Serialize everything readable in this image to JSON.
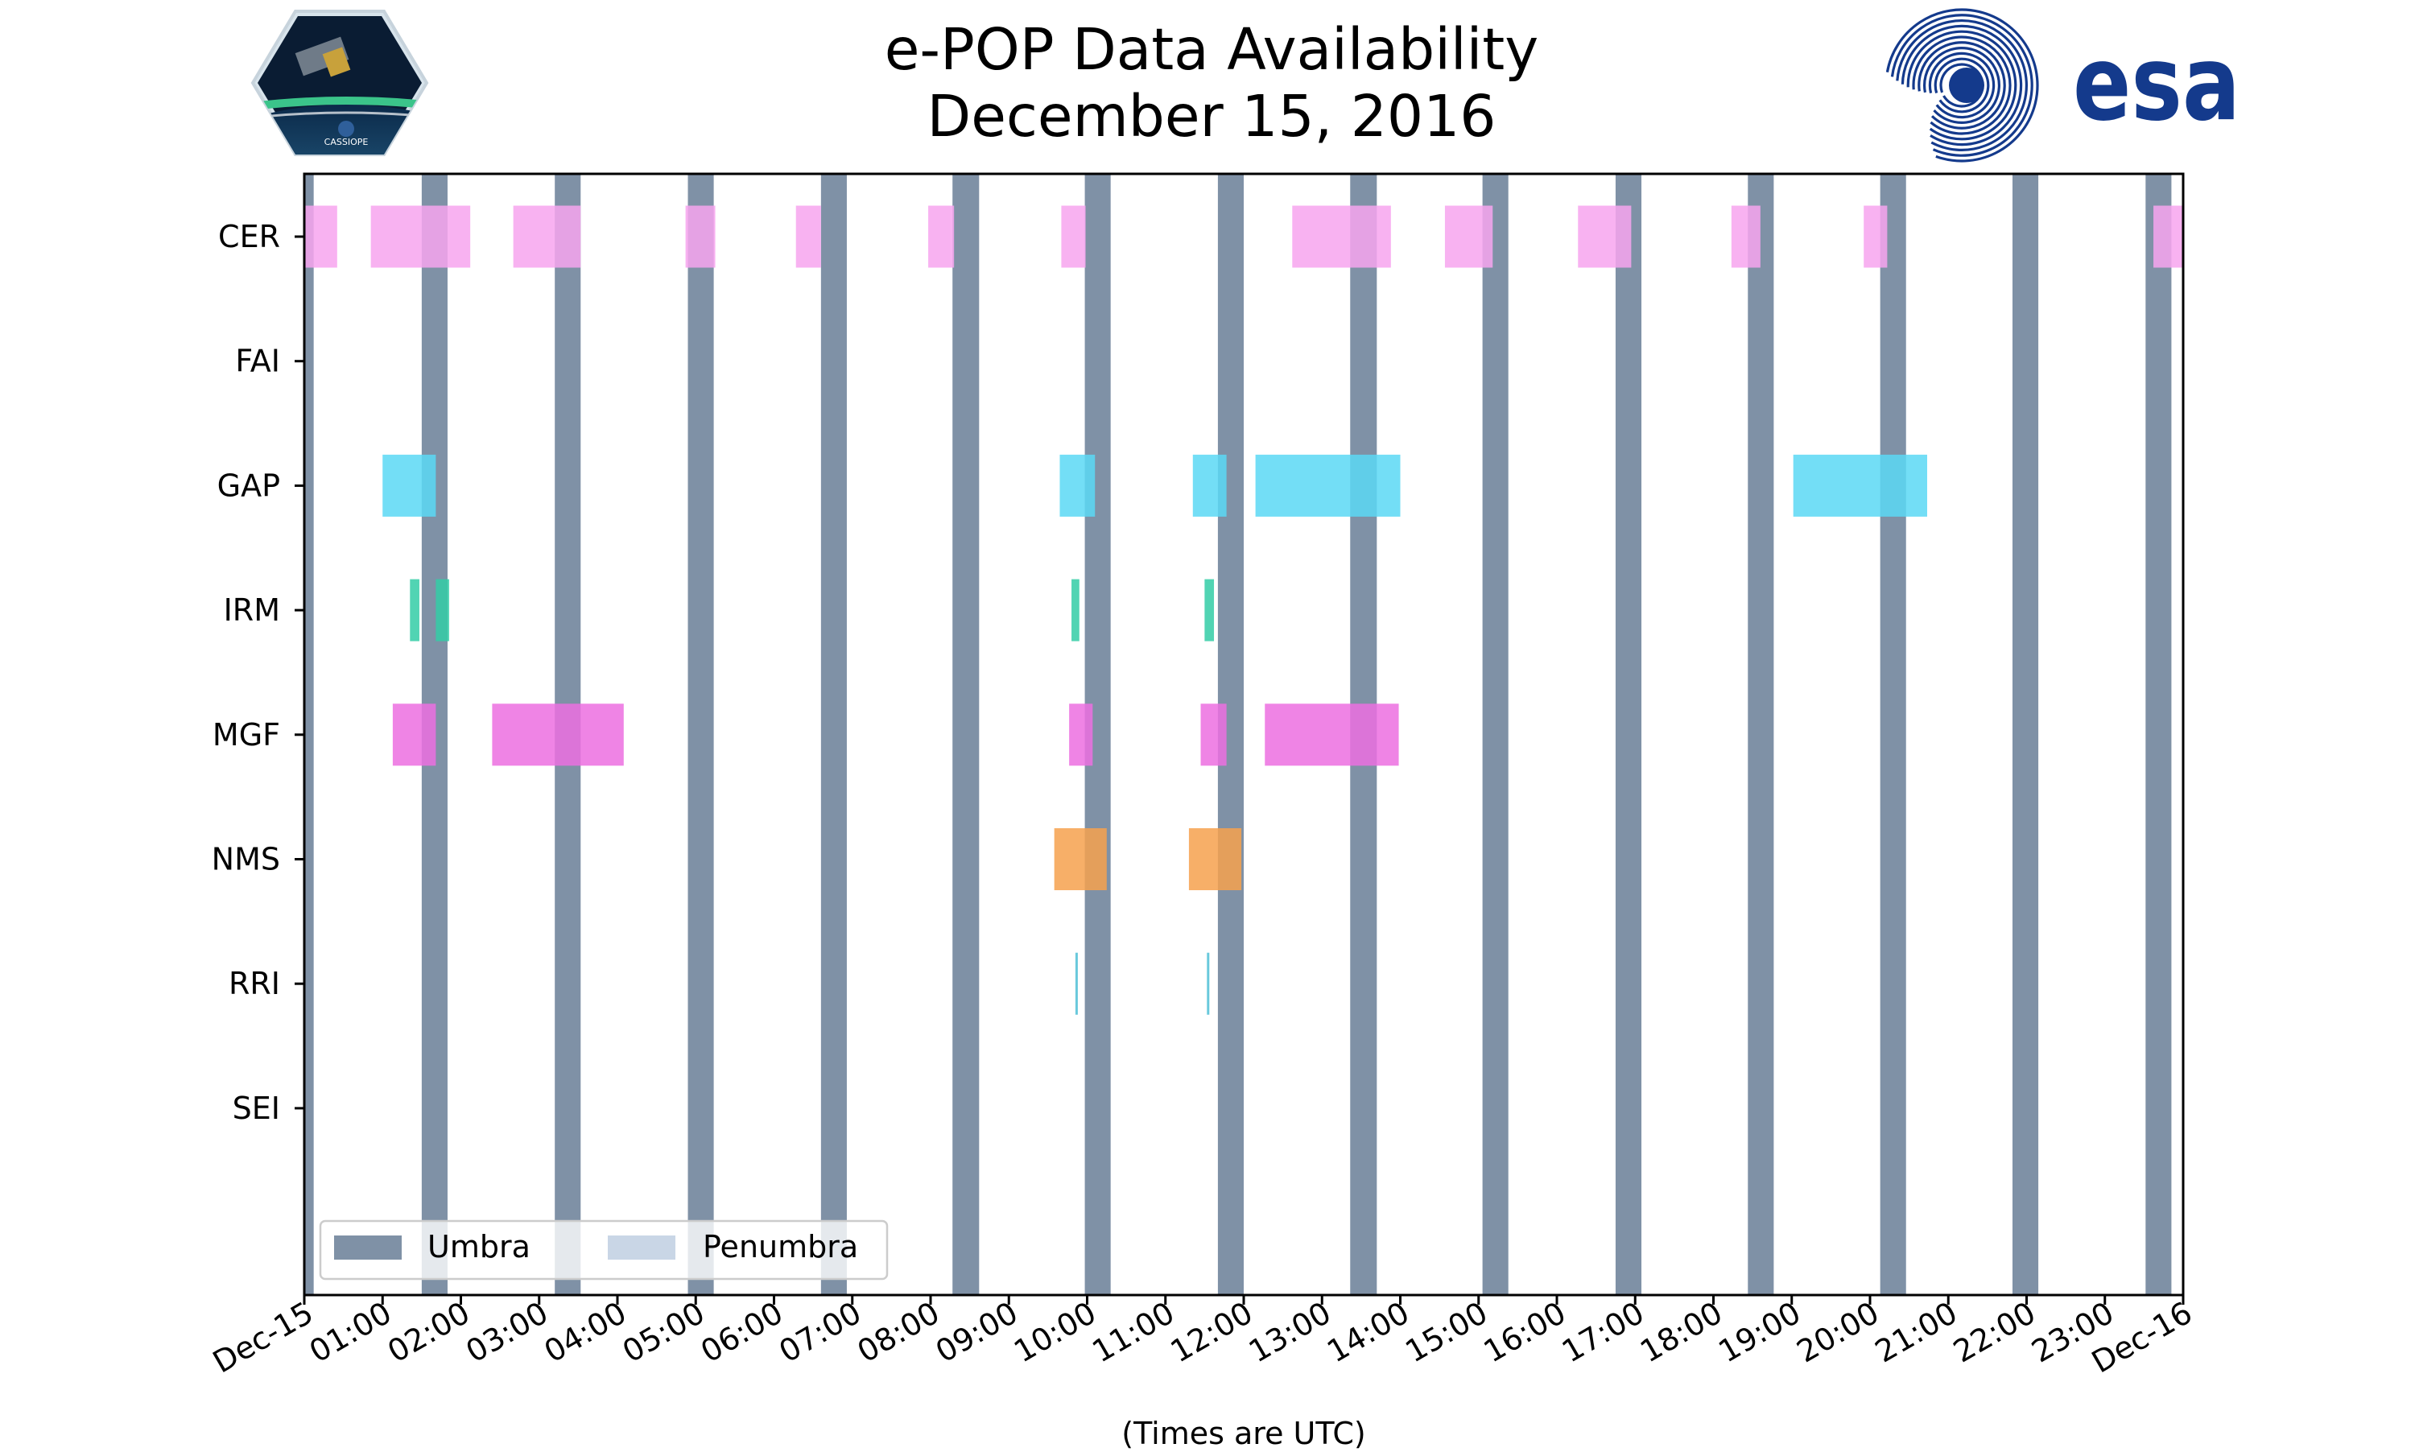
{
  "header": {
    "title_line1": "e-POP Data Availability",
    "title_line2": "December 15, 2016",
    "logo_left_text": "CASSIOPE",
    "logo_right_text": "esa"
  },
  "colors": {
    "umbra": "#7f91a6",
    "penumbra": "#c9d6e6",
    "CER": "#f7a5ee",
    "GAP": "#5ad8f5",
    "IRM": "#33cca6",
    "MGF": "#ec6ee0",
    "NMS": "#f6a14d",
    "RRI": "#4fc0d6",
    "esa_blue": "#143a8c"
  },
  "chart_data": {
    "type": "timeline",
    "title": "e-POP Data Availability\nDecember 15, 2016",
    "xlabel": "(Times are UTC)",
    "x_range_hours": [
      0,
      24
    ],
    "x_ticks": [
      "Dec-15",
      "01:00",
      "02:00",
      "03:00",
      "04:00",
      "05:00",
      "06:00",
      "07:00",
      "08:00",
      "09:00",
      "10:00",
      "11:00",
      "12:00",
      "13:00",
      "14:00",
      "15:00",
      "16:00",
      "17:00",
      "18:00",
      "19:00",
      "20:00",
      "21:00",
      "22:00",
      "23:00",
      "Dec-16"
    ],
    "instruments": [
      "CER",
      "FAI",
      "GAP",
      "IRM",
      "MGF",
      "NMS",
      "RRI",
      "SEI"
    ],
    "legend": {
      "position": "lower-left",
      "entries": [
        "Umbra",
        "Penumbra"
      ]
    },
    "umbra_intervals": [
      [
        0.0,
        0.12
      ],
      [
        1.5,
        1.83
      ],
      [
        3.2,
        3.53
      ],
      [
        4.9,
        5.23
      ],
      [
        6.6,
        6.93
      ],
      [
        8.28,
        8.62
      ],
      [
        9.97,
        10.3
      ],
      [
        11.67,
        12.0
      ],
      [
        13.36,
        13.7
      ],
      [
        15.05,
        15.38
      ],
      [
        16.75,
        17.08
      ],
      [
        18.44,
        18.77
      ],
      [
        20.13,
        20.46
      ],
      [
        21.82,
        22.15
      ],
      [
        23.52,
        23.85
      ]
    ],
    "availability": {
      "CER": [
        [
          0.0,
          0.42
        ],
        [
          0.85,
          2.12
        ],
        [
          2.67,
          3.53
        ],
        [
          4.87,
          5.25
        ],
        [
          6.28,
          6.6
        ],
        [
          7.97,
          8.3
        ],
        [
          9.67,
          9.98
        ],
        [
          12.62,
          13.88
        ],
        [
          14.57,
          15.18
        ],
        [
          16.27,
          16.95
        ],
        [
          18.23,
          18.6
        ],
        [
          19.92,
          20.22
        ],
        [
          23.62,
          24.0
        ]
      ],
      "FAI": [],
      "GAP": [
        [
          1.0,
          1.68
        ],
        [
          9.65,
          10.1
        ],
        [
          11.35,
          11.78
        ],
        [
          12.15,
          14.0
        ],
        [
          19.02,
          20.73
        ]
      ],
      "IRM": [
        [
          1.35,
          1.47
        ],
        [
          1.68,
          1.85
        ],
        [
          9.8,
          9.9
        ],
        [
          11.5,
          11.62
        ]
      ],
      "MGF": [
        [
          1.13,
          1.68
        ],
        [
          2.4,
          4.08
        ],
        [
          9.77,
          10.07
        ],
        [
          11.45,
          11.78
        ],
        [
          12.27,
          13.98
        ]
      ],
      "NMS": [
        [
          9.58,
          10.25
        ],
        [
          11.3,
          11.97
        ]
      ],
      "RRI": [
        [
          9.85,
          9.88
        ],
        [
          11.53,
          11.56
        ]
      ],
      "SEI": []
    }
  }
}
